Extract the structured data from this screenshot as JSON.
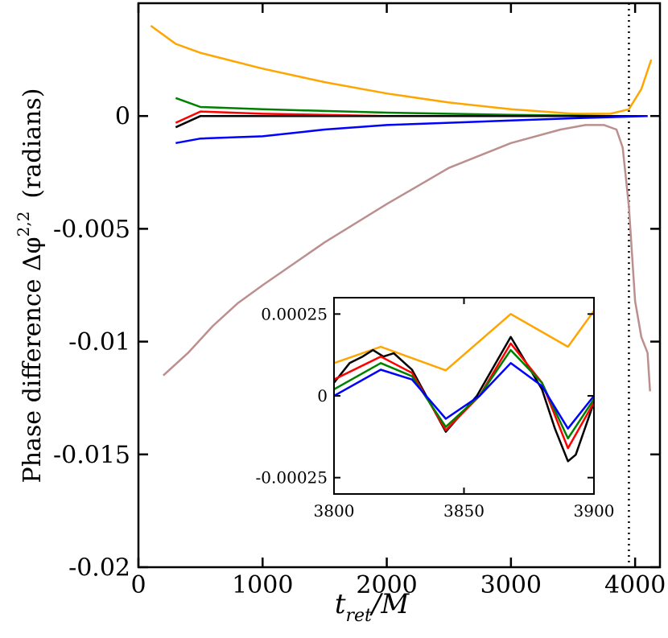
{
  "chart_data": [
    {
      "type": "line",
      "xlabel_main": "t",
      "xlabel_sub": "ret",
      "xlabel_tail": "/M",
      "ylabel_text": "Phase difference  Δφ",
      "ylabel_sup": "2,2",
      "ylabel_tail": "(radians)",
      "xlim": [
        0,
        4200
      ],
      "ylim": [
        -0.02,
        0.005
      ],
      "xticks": [
        0,
        1000,
        2000,
        3000,
        4000
      ],
      "xtick_labels": [
        "0",
        "1000",
        "2000",
        "3000",
        "4000"
      ],
      "yticks": [
        0,
        -0.005,
        -0.01,
        -0.015,
        -0.02
      ],
      "ytick_labels": [
        "0",
        "-0.005",
        "-0.01",
        "-0.015",
        "-0.02"
      ],
      "vline_x": 3950,
      "series": [
        {
          "color": "#ffa500",
          "x": [
            100,
            300,
            500,
            1000,
            1500,
            2000,
            2500,
            3000,
            3500,
            3800,
            3950,
            4050,
            4130
          ],
          "y": [
            0.004,
            0.0032,
            0.0028,
            0.0021,
            0.0015,
            0.001,
            0.0006,
            0.0003,
            0.0001,
            0.0001,
            0.0003,
            0.0012,
            0.0025
          ]
        },
        {
          "color": "#008000",
          "x": [
            300,
            500,
            1000,
            2000,
            3000,
            3800,
            4100
          ],
          "y": [
            0.0008,
            0.0004,
            0.0003,
            0.00015,
            5e-05,
            0.0,
            0.0
          ]
        },
        {
          "color": "#ff0000",
          "x": [
            300,
            500,
            1000,
            2000,
            3000,
            3800,
            4100
          ],
          "y": [
            -0.0003,
            0.0002,
            0.0001,
            0.0,
            0.0,
            0.0,
            0.0
          ]
        },
        {
          "color": "#000000",
          "x": [
            300,
            500,
            1000,
            2000,
            3000,
            3800,
            4100
          ],
          "y": [
            -0.0005,
            0.0,
            0.0,
            0.0,
            0.0,
            0.0,
            0.0
          ]
        },
        {
          "color": "#0000ff",
          "x": [
            300,
            500,
            1000,
            1500,
            2000,
            2500,
            3000,
            3500,
            4100
          ],
          "y": [
            -0.0012,
            -0.001,
            -0.0009,
            -0.0006,
            -0.0004,
            -0.0003,
            -0.0002,
            -0.0001,
            0.0
          ]
        },
        {
          "color": "#bc8f8f",
          "x": [
            200,
            400,
            600,
            800,
            1000,
            1500,
            2000,
            2500,
            3000,
            3400,
            3600,
            3750,
            3850,
            3900,
            3950,
            4000,
            4050,
            4100,
            4120
          ],
          "y": [
            -0.0115,
            -0.0105,
            -0.0093,
            -0.0083,
            -0.0075,
            -0.0056,
            -0.0039,
            -0.0023,
            -0.0012,
            -0.0006,
            -0.0004,
            -0.0004,
            -0.0006,
            -0.0014,
            -0.004,
            -0.0082,
            -0.0098,
            -0.0105,
            -0.0122
          ]
        }
      ]
    },
    {
      "type": "line",
      "xlim": [
        3800,
        3900
      ],
      "ylim": [
        -0.0003,
        0.0003
      ],
      "xticks": [
        3800,
        3850,
        3900
      ],
      "xtick_labels": [
        "3800",
        "3850",
        "3900"
      ],
      "yticks": [
        0.00025,
        0,
        -0.00025
      ],
      "ytick_labels": [
        "0.00025",
        "0",
        "-0.00025"
      ],
      "series": [
        {
          "color": "#ffa500",
          "x": [
            3800,
            3818,
            3843,
            3868,
            3890,
            3900
          ],
          "y": [
            0.0001,
            0.00015,
            7.8e-05,
            0.00025,
            0.00015,
            0.00026
          ]
        },
        {
          "color": "#000000",
          "x": [
            3800,
            3806,
            3811,
            3815,
            3819,
            3823,
            3830,
            3843,
            3855,
            3868,
            3880,
            3885,
            3890,
            3893,
            3900
          ],
          "y": [
            4e-05,
            0.0001,
            0.00012,
            0.00014,
            0.00012,
            0.00013,
            8e-05,
            -0.00011,
            0.0,
            0.00018,
            2e-05,
            -0.0001,
            -0.0002,
            -0.00018,
            -2e-05
          ]
        },
        {
          "color": "#ff0000",
          "x": [
            3800,
            3818,
            3830,
            3843,
            3856,
            3868,
            3880,
            3890,
            3900
          ],
          "y": [
            5e-05,
            0.00012,
            7e-05,
            -0.000105,
            0.0,
            0.00016,
            4e-05,
            -0.00016,
            -2e-05
          ]
        },
        {
          "color": "#008000",
          "x": [
            3800,
            3818,
            3830,
            3843,
            3856,
            3868,
            3880,
            3890,
            3900
          ],
          "y": [
            2e-05,
            0.0001,
            6e-05,
            -9.5e-05,
            0.0,
            0.00014,
            4e-05,
            -0.00013,
            -1e-05
          ]
        },
        {
          "color": "#0000ff",
          "x": [
            3800,
            3818,
            3830,
            3843,
            3856,
            3868,
            3880,
            3890,
            3900
          ],
          "y": [
            0.0,
            8e-05,
            5e-05,
            -7e-05,
            0.0,
            0.0001,
            3e-05,
            -0.0001,
            0.0
          ]
        }
      ]
    }
  ]
}
